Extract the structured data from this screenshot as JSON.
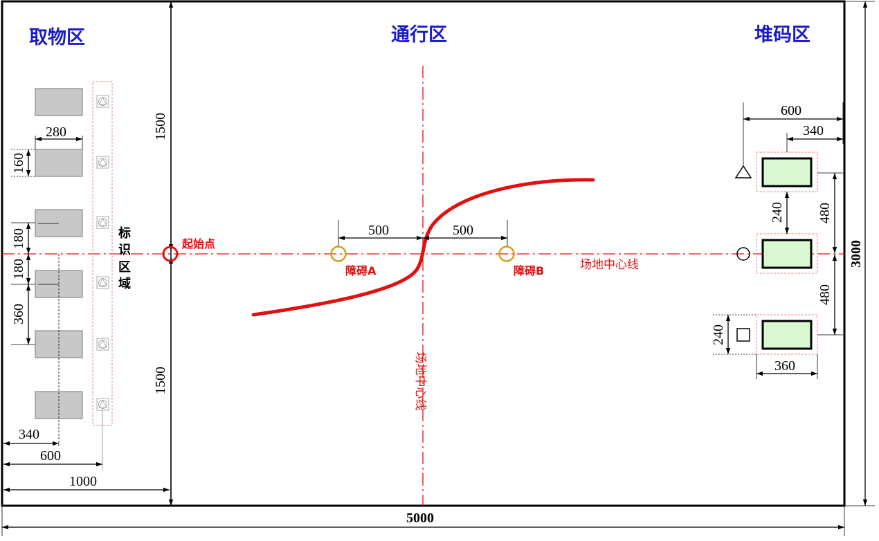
{
  "zones": {
    "pickup": "取物区",
    "passage": "通行区",
    "stack": "堆码区"
  },
  "labels": {
    "start_point": "起始点",
    "obstacle_a": "障碍A",
    "obstacle_b": "障碍B",
    "center_line_h": "场地中心线",
    "center_line_v": "场地中心线",
    "marker_area": [
      "标",
      "识",
      "区",
      "域"
    ]
  },
  "dimensions": {
    "total_width": "5000",
    "total_height": "3000",
    "upper_half": "1500",
    "lower_half": "1500",
    "pickup_zone_width": "1000",
    "marker_offset": "600",
    "block_center_offset": "340",
    "block_width": "280",
    "block_height": "160",
    "center_gap_upper": "180",
    "center_gap_lower": "180",
    "block_pitch": "360",
    "obstacle_a_dist": "500",
    "obstacle_b_dist": "500",
    "stack_marker_offset": "600",
    "stack_center_offset": "340",
    "stack_gap": "240",
    "stack_pitch_upper": "480",
    "stack_pitch_lower": "480",
    "stack_marker_size": "240",
    "stack_width": "360"
  },
  "colors": {
    "zone_title": "#1a1ac8",
    "center_line": "#e01010",
    "path": "#e01010",
    "obstacle": "#d4a017",
    "pickup_block": "#c8c8c8",
    "stack_target": "#d9f7d0"
  }
}
